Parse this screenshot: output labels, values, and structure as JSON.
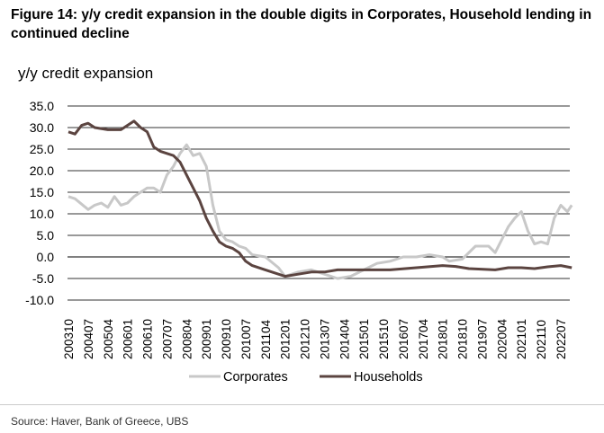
{
  "title": "Figure 14: y/y credit expansion in the double digits in Corporates, Household lending in continued decline",
  "source": "Source: Haver, Bank of Greece, UBS",
  "chart_data": {
    "type": "line",
    "title": "y/y credit expansion",
    "ylim": [
      -10,
      35
    ],
    "yticks": [
      "35.0",
      "30.0",
      "25.0",
      "20.0",
      "15.0",
      "10.0",
      "5.0",
      "0.0",
      "-5.0",
      "-10.0"
    ],
    "xticks": [
      "200310",
      "200407",
      "200504",
      "200601",
      "200610",
      "200707",
      "200804",
      "200901",
      "200910",
      "201007",
      "201104",
      "201201",
      "201210",
      "201307",
      "201404",
      "201501",
      "201510",
      "201607",
      "201704",
      "201801",
      "201810",
      "201907",
      "202004",
      "202101",
      "202110",
      "202207"
    ],
    "grid": true,
    "legend": "bottom",
    "series": [
      {
        "name": "Corporates",
        "color": "#c8c8c8",
        "points": [
          [
            "200310",
            14
          ],
          [
            "200401",
            13.5
          ],
          [
            "200407",
            11
          ],
          [
            "200410",
            12
          ],
          [
            "200501",
            12.5
          ],
          [
            "200504",
            11.5
          ],
          [
            "200507",
            14
          ],
          [
            "200510",
            12
          ],
          [
            "200601",
            12.5
          ],
          [
            "200604",
            14
          ],
          [
            "200607",
            15
          ],
          [
            "200610",
            16
          ],
          [
            "200701",
            16
          ],
          [
            "200704",
            15
          ],
          [
            "200707",
            19
          ],
          [
            "200710",
            21
          ],
          [
            "200801",
            24
          ],
          [
            "200804",
            26
          ],
          [
            "200807",
            23.5
          ],
          [
            "200810",
            24
          ],
          [
            "200901",
            21
          ],
          [
            "200904",
            12
          ],
          [
            "200907",
            6
          ],
          [
            "200910",
            4
          ],
          [
            "201001",
            3.5
          ],
          [
            "201004",
            2.5
          ],
          [
            "201007",
            2
          ],
          [
            "201010",
            0.5
          ],
          [
            "201104",
            0
          ],
          [
            "201110",
            -2.5
          ],
          [
            "201201",
            -4.5
          ],
          [
            "201207",
            -3.5
          ],
          [
            "201301",
            -3
          ],
          [
            "201307",
            -4
          ],
          [
            "201401",
            -5
          ],
          [
            "201407",
            -4.5
          ],
          [
            "201501",
            -3
          ],
          [
            "201507",
            -1.5
          ],
          [
            "201601",
            -1
          ],
          [
            "201607",
            0
          ],
          [
            "201701",
            0
          ],
          [
            "201707",
            0.5
          ],
          [
            "201801",
            0
          ],
          [
            "201804",
            -1
          ],
          [
            "201810",
            -0.5
          ],
          [
            "201904",
            2.5
          ],
          [
            "201910",
            2.5
          ],
          [
            "202001",
            1
          ],
          [
            "202004",
            4
          ],
          [
            "202007",
            7
          ],
          [
            "202010",
            9
          ],
          [
            "202101",
            10.5
          ],
          [
            "202104",
            6
          ],
          [
            "202107",
            3
          ],
          [
            "202110",
            3.5
          ],
          [
            "202201",
            3
          ],
          [
            "202204",
            9
          ],
          [
            "202207",
            12
          ],
          [
            "202210",
            10.5
          ],
          [
            "202212",
            12
          ]
        ]
      },
      {
        "name": "Households",
        "color": "#5b4440",
        "points": [
          [
            "200310",
            29
          ],
          [
            "200401",
            28.5
          ],
          [
            "200404",
            30.5
          ],
          [
            "200407",
            31
          ],
          [
            "200410",
            30
          ],
          [
            "200504",
            29.5
          ],
          [
            "200510",
            29.5
          ],
          [
            "200604",
            31.5
          ],
          [
            "200607",
            30
          ],
          [
            "200610",
            29
          ],
          [
            "200701",
            25.5
          ],
          [
            "200704",
            24.5
          ],
          [
            "200707",
            24
          ],
          [
            "200710",
            23.5
          ],
          [
            "200801",
            22
          ],
          [
            "200804",
            19
          ],
          [
            "200807",
            16
          ],
          [
            "200810",
            13
          ],
          [
            "200901",
            9
          ],
          [
            "200904",
            6
          ],
          [
            "200907",
            3.5
          ],
          [
            "200910",
            2.5
          ],
          [
            "201001",
            2
          ],
          [
            "201004",
            1
          ],
          [
            "201007",
            -1
          ],
          [
            "201010",
            -2
          ],
          [
            "201104",
            -3
          ],
          [
            "201110",
            -4
          ],
          [
            "201201",
            -4.5
          ],
          [
            "201207",
            -4
          ],
          [
            "201301",
            -3.5
          ],
          [
            "201307",
            -3.5
          ],
          [
            "201401",
            -3
          ],
          [
            "201501",
            -3
          ],
          [
            "201601",
            -3
          ],
          [
            "201701",
            -2.5
          ],
          [
            "201801",
            -2
          ],
          [
            "201807",
            -2.2
          ],
          [
            "201901",
            -2.7
          ],
          [
            "202001",
            -3
          ],
          [
            "202007",
            -2.5
          ],
          [
            "202101",
            -2.5
          ],
          [
            "202107",
            -2.7
          ],
          [
            "202201",
            -2.3
          ],
          [
            "202207",
            -2
          ],
          [
            "202212",
            -2.5
          ]
        ]
      }
    ]
  }
}
